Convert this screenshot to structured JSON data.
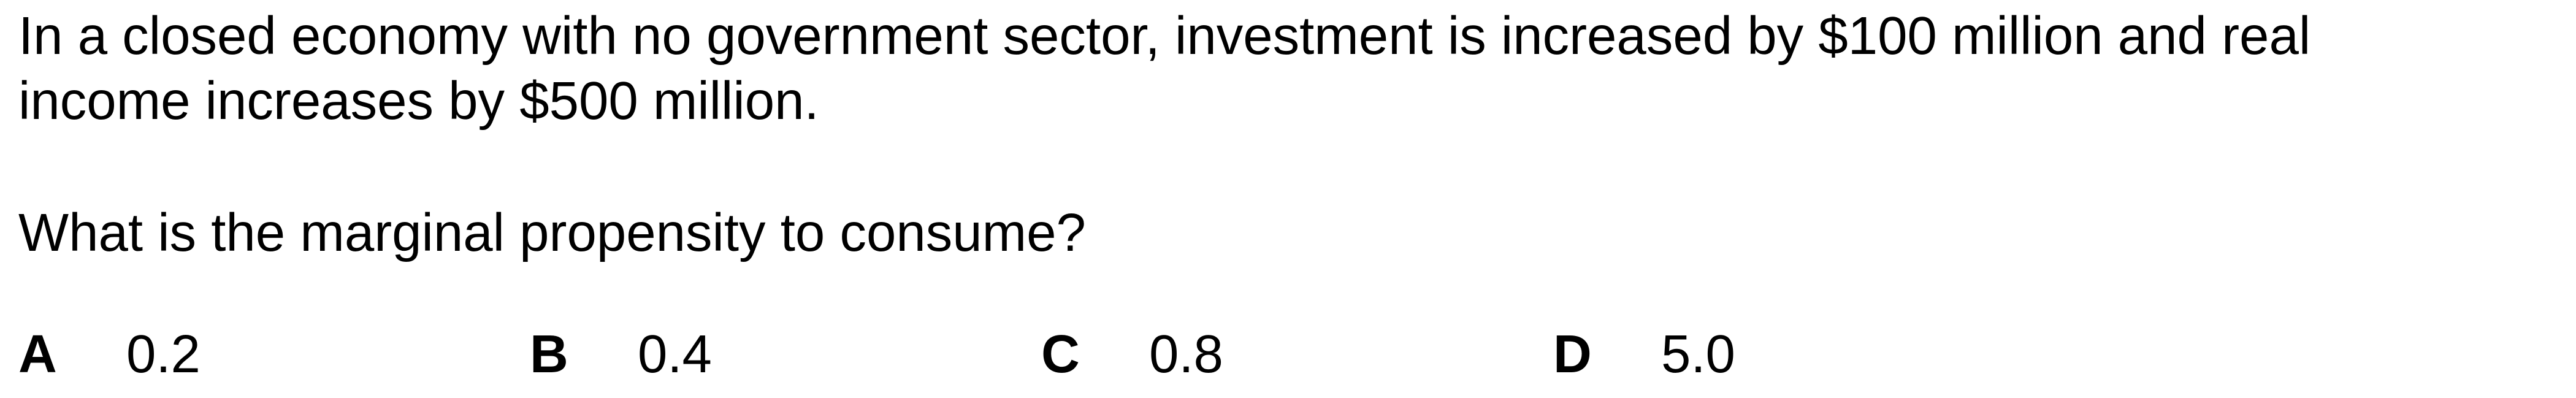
{
  "question": {
    "stem_line_1": "In a closed economy with no government sector, investment is increased by $100 million and real",
    "stem_line_2": "income increases by $500 million.",
    "prompt": "What is the marginal propensity to consume?"
  },
  "options": [
    {
      "letter": "A",
      "value": "0.2"
    },
    {
      "letter": "B",
      "value": "0.4"
    },
    {
      "letter": "C",
      "value": "0.8"
    },
    {
      "letter": "D",
      "value": "5.0"
    }
  ]
}
